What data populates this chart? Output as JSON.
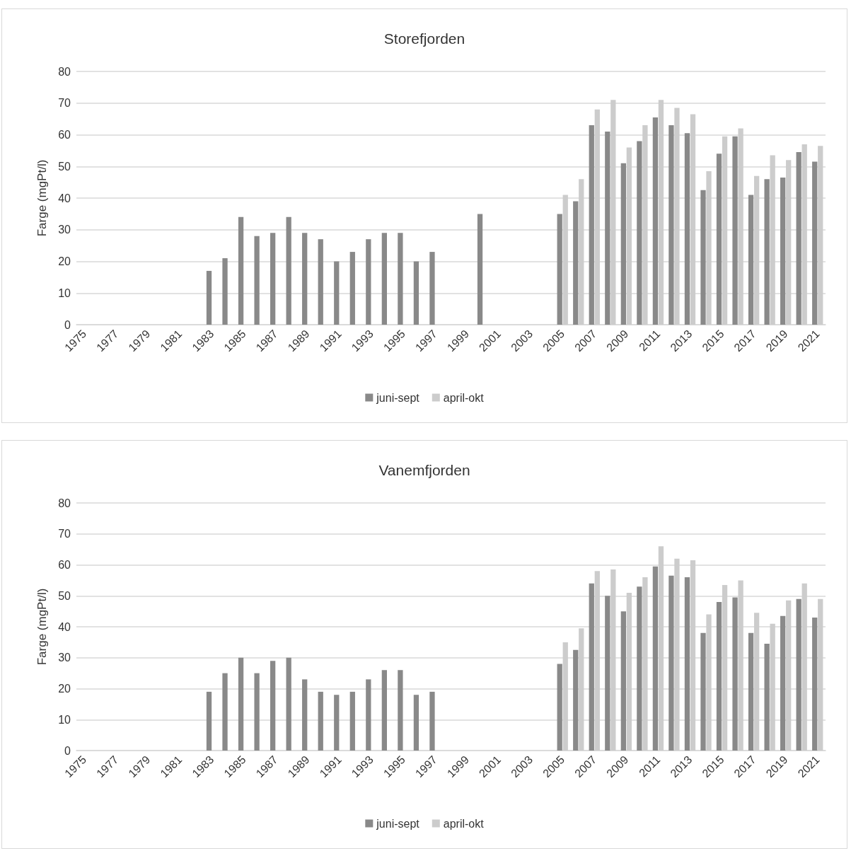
{
  "chart_data": [
    {
      "type": "bar",
      "title": "Storefjorden",
      "ylabel": "Farge (mgPt/l)",
      "categories": [
        "1975",
        null,
        "1977",
        null,
        "1979",
        null,
        "1981",
        null,
        "1983",
        null,
        "1985",
        null,
        "1987",
        null,
        "1989",
        null,
        "1991",
        null,
        "1993",
        null,
        "1995",
        null,
        "1997",
        null,
        "1999",
        null,
        "2001",
        null,
        "2003",
        null,
        "2005",
        null,
        "2007",
        null,
        "2009",
        null,
        "2011",
        null,
        "2013",
        null,
        "2015",
        null,
        "2017",
        null,
        "2019",
        null,
        "2021"
      ],
      "series": [
        {
          "name": "juni-sept",
          "color": "#898989",
          "values": [
            null,
            null,
            null,
            null,
            null,
            null,
            null,
            null,
            17,
            21,
            34,
            28,
            29,
            34,
            29,
            27,
            20,
            23,
            27,
            29,
            29,
            20,
            23,
            null,
            null,
            35,
            null,
            null,
            null,
            null,
            35,
            39,
            63,
            61,
            51,
            58,
            65.5,
            63,
            60.5,
            42.5,
            54,
            59.5,
            41,
            46,
            46.5,
            54.5,
            51.5
          ]
        },
        {
          "name": "april-okt",
          "color": "#cccccc",
          "values": [
            null,
            null,
            null,
            null,
            null,
            null,
            null,
            null,
            null,
            null,
            null,
            null,
            null,
            null,
            null,
            null,
            null,
            null,
            null,
            null,
            null,
            null,
            null,
            null,
            null,
            null,
            null,
            null,
            null,
            null,
            41,
            46,
            68,
            71,
            56,
            63,
            71,
            68.5,
            66.5,
            48.5,
            59.5,
            62,
            47,
            53.5,
            52,
            57,
            56.5
          ]
        }
      ],
      "ylim": [
        0,
        80
      ],
      "yticks": [
        0,
        10,
        20,
        30,
        40,
        50,
        60,
        70,
        80
      ],
      "grid": "y",
      "legend": "bottom"
    },
    {
      "type": "bar",
      "title": "Vanemfjorden",
      "ylabel": "Farge (mgPt/l)",
      "categories": [
        "1975",
        null,
        "1977",
        null,
        "1979",
        null,
        "1981",
        null,
        "1983",
        null,
        "1985",
        null,
        "1987",
        null,
        "1989",
        null,
        "1991",
        null,
        "1993",
        null,
        "1995",
        null,
        "1997",
        null,
        "1999",
        null,
        "2001",
        null,
        "2003",
        null,
        "2005",
        null,
        "2007",
        null,
        "2009",
        null,
        "2011",
        null,
        "2013",
        null,
        "2015",
        null,
        "2017",
        null,
        "2019",
        null,
        "2021"
      ],
      "series": [
        {
          "name": "juni-sept",
          "color": "#898989",
          "values": [
            null,
            null,
            null,
            null,
            null,
            null,
            null,
            null,
            19,
            25,
            30,
            25,
            29,
            30,
            23,
            19,
            18,
            19,
            23,
            26,
            26,
            18,
            19,
            null,
            null,
            null,
            null,
            null,
            null,
            null,
            28,
            32.5,
            54,
            50,
            45,
            53,
            59.5,
            56.5,
            56,
            38,
            48,
            49.5,
            38,
            34.5,
            43.5,
            49,
            43
          ]
        },
        {
          "name": "april-okt",
          "color": "#cccccc",
          "values": [
            null,
            null,
            null,
            null,
            null,
            null,
            null,
            null,
            null,
            null,
            null,
            null,
            null,
            null,
            null,
            null,
            null,
            null,
            null,
            null,
            null,
            null,
            null,
            null,
            null,
            null,
            null,
            null,
            null,
            null,
            35,
            39.5,
            58,
            58.5,
            51,
            56,
            66,
            62,
            61.5,
            44,
            53.5,
            55,
            44.5,
            41,
            48.5,
            54,
            49
          ]
        }
      ],
      "ylim": [
        0,
        80
      ],
      "yticks": [
        0,
        10,
        20,
        30,
        40,
        50,
        60,
        70,
        80
      ],
      "grid": "y",
      "legend": "bottom"
    }
  ]
}
